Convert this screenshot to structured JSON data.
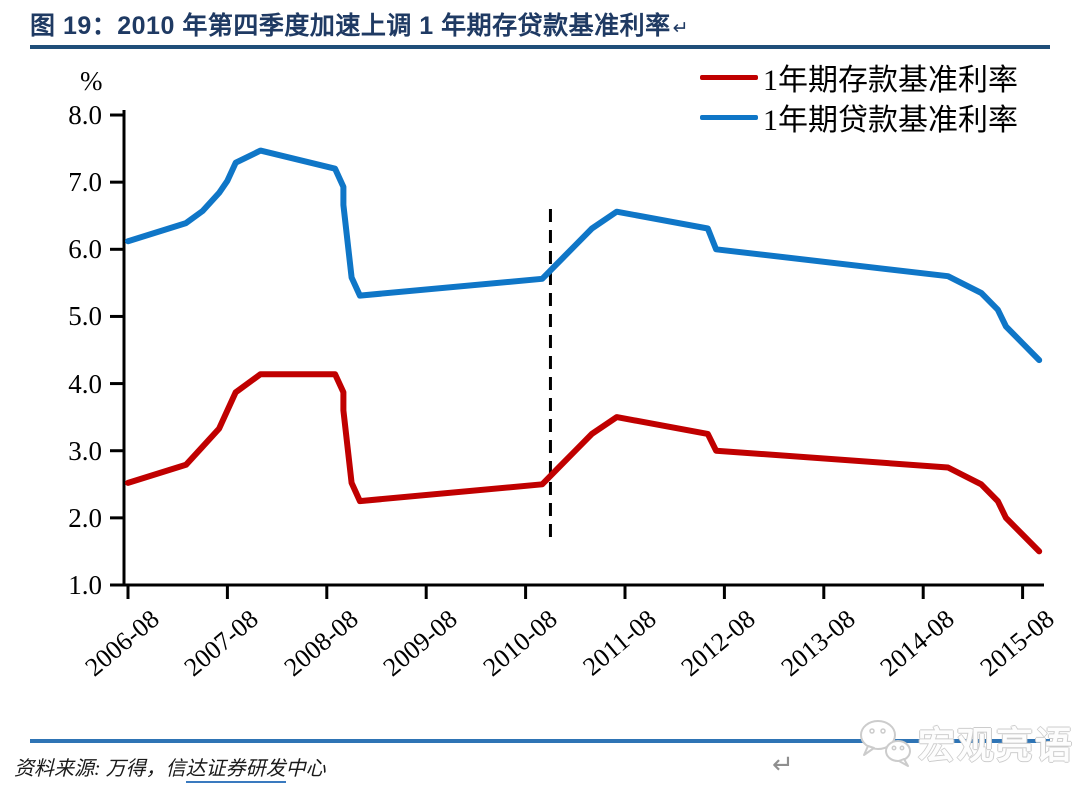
{
  "header": {
    "title": "图 19：2010 年第四季度加速上调 1 年期存贷款基准利率",
    "return_mark": "↵"
  },
  "chart_data": {
    "type": "line",
    "title": "2010 年第四季度加速上调 1 年期存贷款基准利率",
    "unit_label": "%",
    "ylim": [
      1.0,
      8.0
    ],
    "yticks": [
      "8.0",
      "7.0",
      "6.0",
      "5.0",
      "4.0",
      "3.0",
      "2.0",
      "1.0"
    ],
    "xticks": [
      "2006-08",
      "2007-08",
      "2008-08",
      "2009-08",
      "2010-08",
      "2011-08",
      "2012-08",
      "2013-08",
      "2014-08",
      "2015-08"
    ],
    "grid": false,
    "legend_position": "top-right",
    "annotation": {
      "type": "dashed-vertical-line",
      "x": "2010-11",
      "value_top": 6.6,
      "value_bottom": 1.6
    },
    "series": [
      {
        "name": "1年期存款基准利率",
        "color": "#C00000",
        "points": [
          [
            "2006-08",
            2.52
          ],
          [
            "2007-03",
            2.79
          ],
          [
            "2007-05",
            3.06
          ],
          [
            "2007-07",
            3.33
          ],
          [
            "2007-08",
            3.6
          ],
          [
            "2007-09",
            3.87
          ],
          [
            "2007-12",
            4.14
          ],
          [
            "2008-09",
            4.14
          ],
          [
            "2008-10",
            3.87
          ],
          [
            "2008-10",
            3.6
          ],
          [
            "2008-11",
            2.52
          ],
          [
            "2008-12",
            2.25
          ],
          [
            "2010-10",
            2.5
          ],
          [
            "2010-12",
            2.75
          ],
          [
            "2011-02",
            3.0
          ],
          [
            "2011-04",
            3.25
          ],
          [
            "2011-07",
            3.5
          ],
          [
            "2012-06",
            3.25
          ],
          [
            "2012-07",
            3.0
          ],
          [
            "2014-11",
            2.75
          ],
          [
            "2015-03",
            2.5
          ],
          [
            "2015-05",
            2.25
          ],
          [
            "2015-06",
            2.0
          ],
          [
            "2015-08",
            1.75
          ],
          [
            "2015-10",
            1.5
          ]
        ]
      },
      {
        "name": "1年期贷款基准利率",
        "color": "#0F76C7",
        "points": [
          [
            "2006-08",
            6.12
          ],
          [
            "2007-03",
            6.39
          ],
          [
            "2007-05",
            6.57
          ],
          [
            "2007-07",
            6.84
          ],
          [
            "2007-08",
            7.02
          ],
          [
            "2007-09",
            7.29
          ],
          [
            "2007-12",
            7.47
          ],
          [
            "2008-09",
            7.2
          ],
          [
            "2008-10",
            6.93
          ],
          [
            "2008-10",
            6.66
          ],
          [
            "2008-11",
            5.58
          ],
          [
            "2008-12",
            5.31
          ],
          [
            "2010-10",
            5.56
          ],
          [
            "2010-12",
            5.81
          ],
          [
            "2011-02",
            6.06
          ],
          [
            "2011-04",
            6.31
          ],
          [
            "2011-07",
            6.56
          ],
          [
            "2012-06",
            6.31
          ],
          [
            "2012-07",
            6.0
          ],
          [
            "2014-11",
            5.6
          ],
          [
            "2015-03",
            5.35
          ],
          [
            "2015-05",
            5.1
          ],
          [
            "2015-06",
            4.85
          ],
          [
            "2015-08",
            4.6
          ],
          [
            "2015-10",
            4.35
          ]
        ]
      }
    ]
  },
  "footer": {
    "source_prefix": "资料来源: 万得，信",
    "source_underlined": "达证券研发",
    "source_suffix": "中心",
    "return_mark": "↵"
  },
  "watermark": {
    "text": "宏观亮语"
  },
  "colors": {
    "title": "#1F3A63",
    "title_rule": "#1F4E79",
    "footer_rule": "#2E74B5",
    "deposit_red": "#C00000",
    "loan_blue": "#0F76C7",
    "axis": "#000000"
  }
}
